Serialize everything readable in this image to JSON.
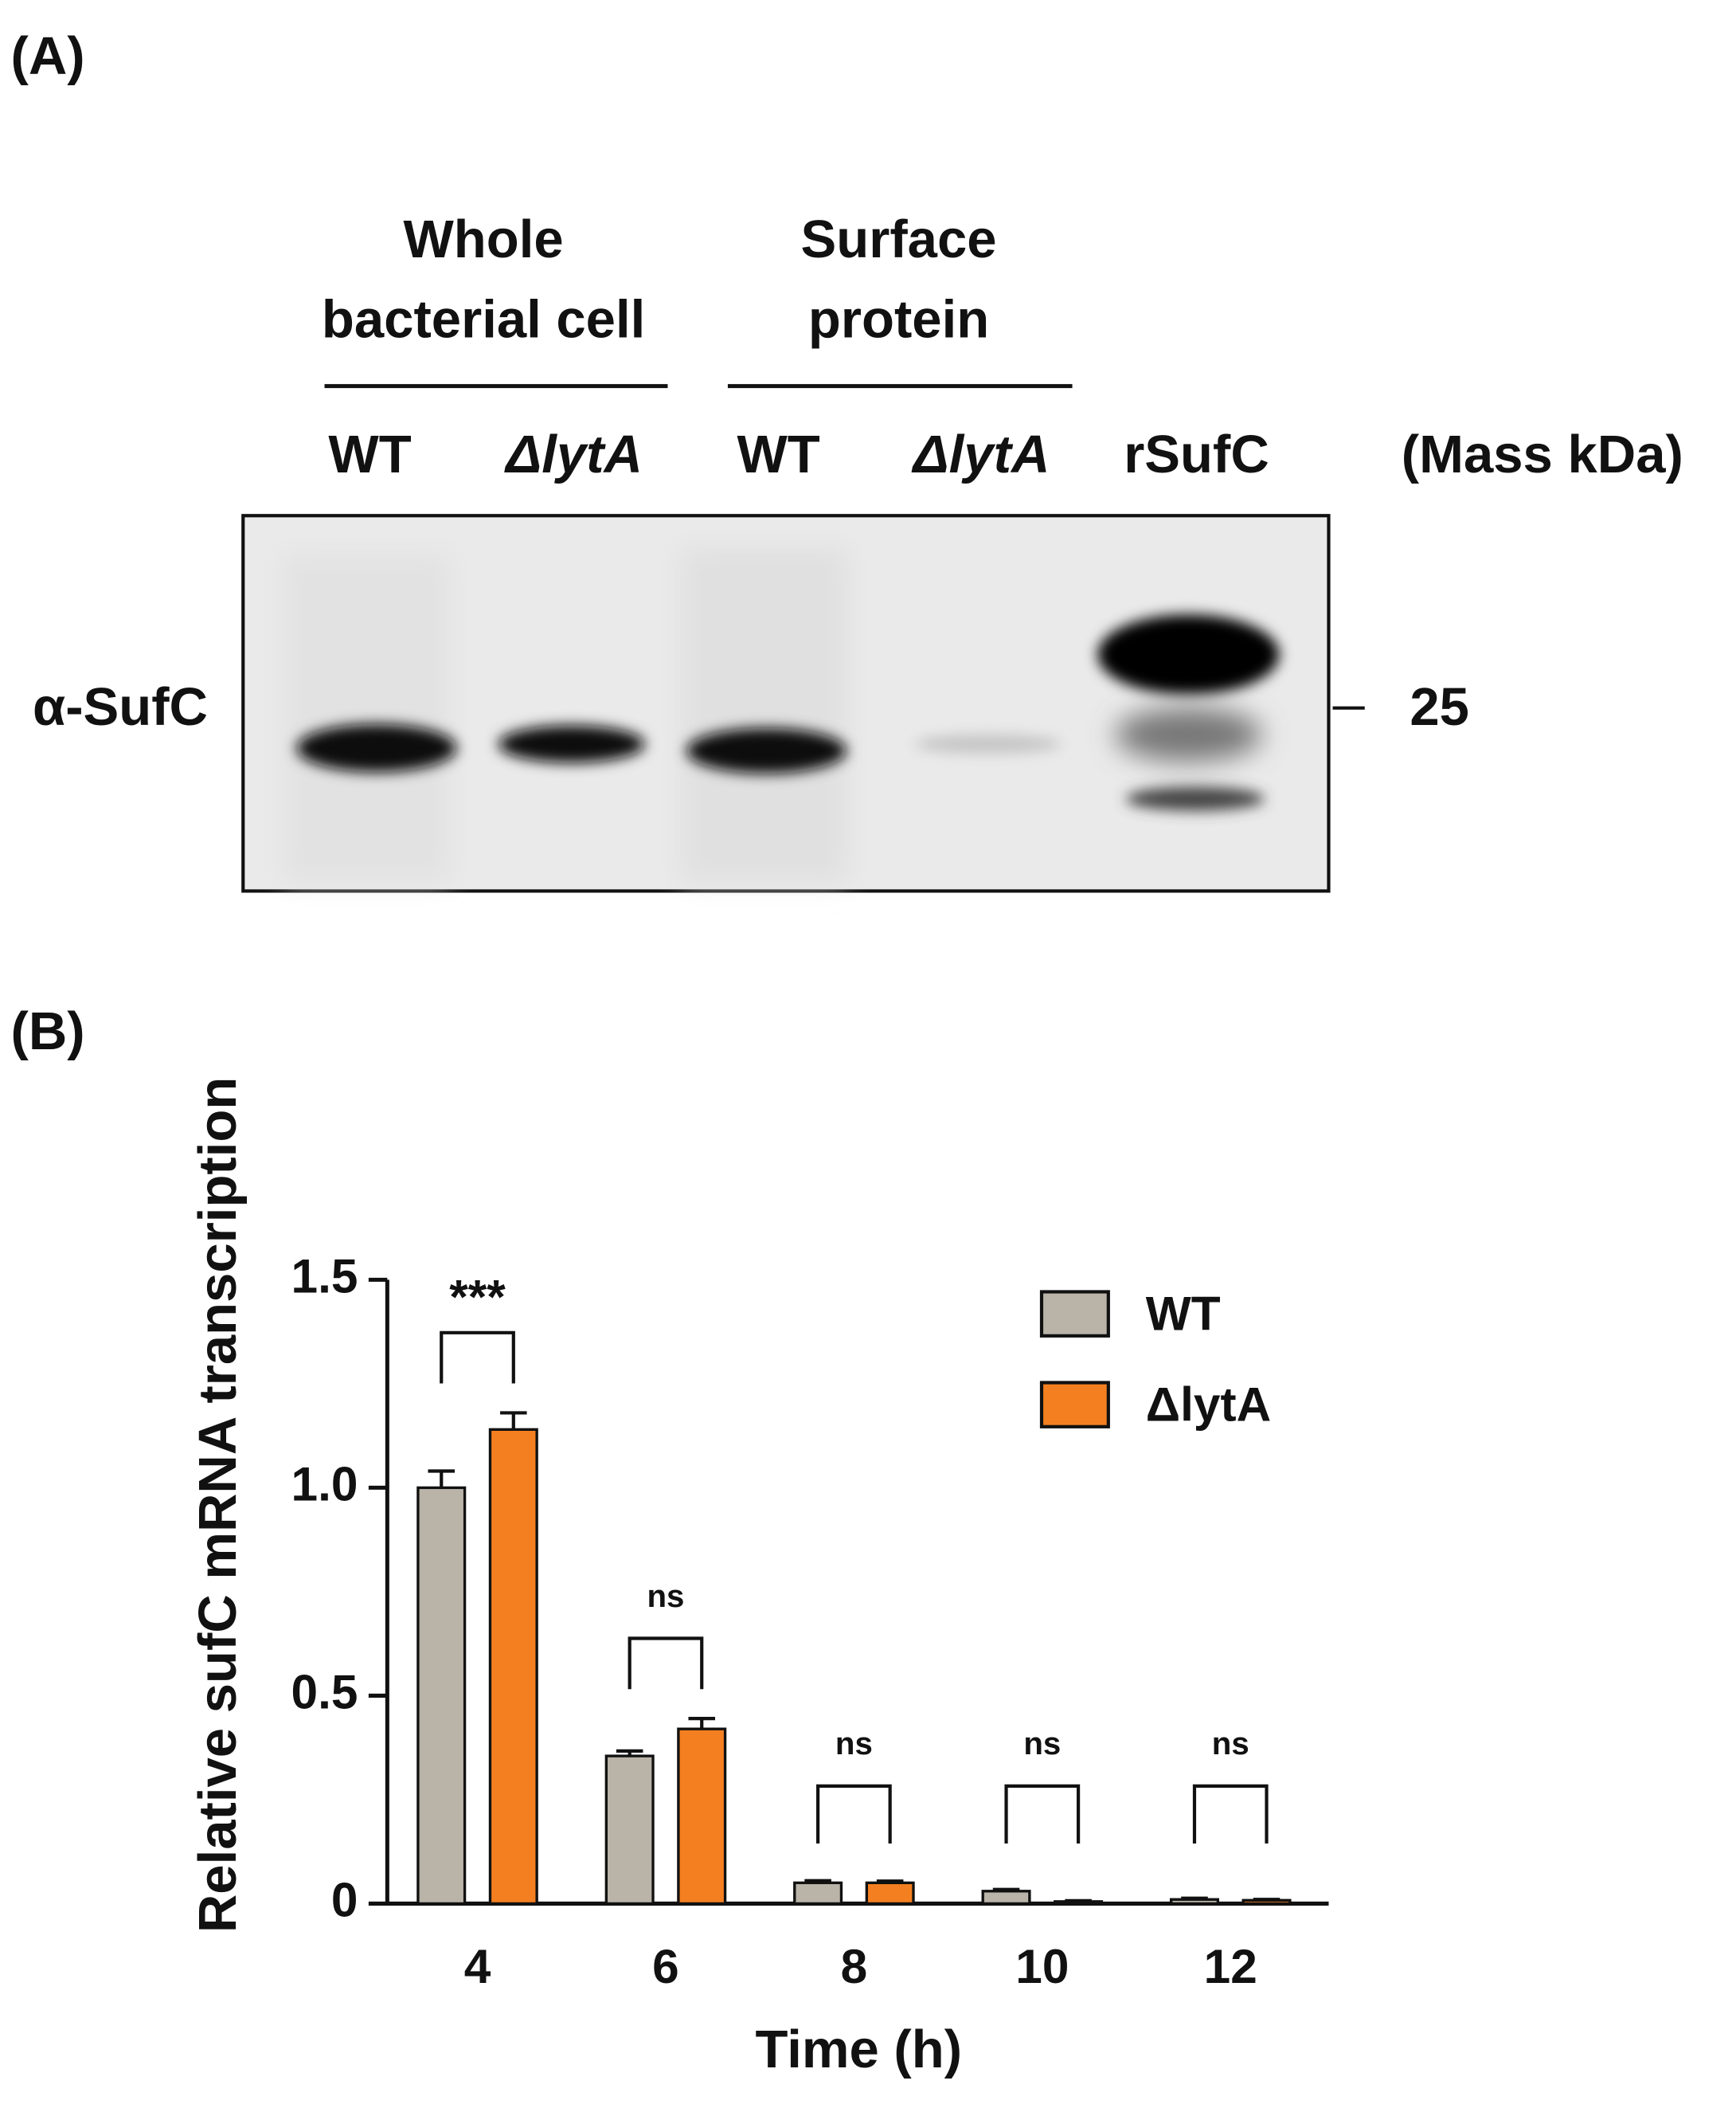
{
  "panel_a": {
    "label": "(A)",
    "groups": [
      {
        "line1": "Whole",
        "line2": "bacterial cell"
      },
      {
        "line1": "Surface",
        "line2": "protein"
      }
    ],
    "lanes": [
      "WT",
      "ΔlytA",
      "WT",
      "ΔlytA",
      "rSufC"
    ],
    "mass_header": "(Mass kDa)",
    "antibody": "α-SufC",
    "marker": "25"
  },
  "panel_b": {
    "label": "(B)",
    "chart_data": {
      "type": "bar",
      "y_label": "Relative sufC mRNA transcription",
      "x_label": "Time (h)",
      "categories": [
        "4",
        "6",
        "8",
        "10",
        "12"
      ],
      "series": [
        {
          "name": "WT",
          "color": "#bab3a8",
          "values": [
            1.0,
            0.355,
            0.05,
            0.03,
            0.01
          ],
          "errors": [
            0.04,
            0.012,
            0.005,
            0.004,
            0.003
          ]
        },
        {
          "name": "ΔlytA",
          "color": "#f47f20",
          "values": [
            1.14,
            0.42,
            0.05,
            0.005,
            0.008
          ],
          "errors": [
            0.04,
            0.025,
            0.004,
            0.002,
            0.002
          ]
        }
      ],
      "significance": [
        "***",
        "ns",
        "ns",
        "ns",
        "ns"
      ],
      "ylim": [
        0,
        1.5
      ],
      "yticks": [
        0,
        0.5,
        {
          "value": 1,
          "label": "1.0"
        },
        1.5
      ]
    }
  }
}
